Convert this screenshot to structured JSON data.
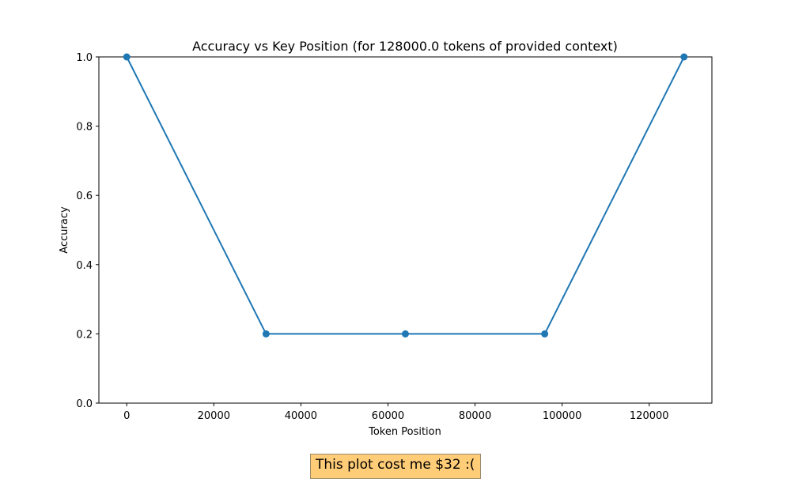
{
  "chart_data": {
    "type": "line",
    "title": "Accuracy vs Key Position (for 128000.0 tokens of provided context)",
    "xlabel": "Token Position",
    "ylabel": "Accuracy",
    "x": [
      0,
      32000,
      64000,
      96000,
      128000
    ],
    "series": [
      {
        "values": [
          1.0,
          0.2,
          0.2,
          0.2,
          1.0
        ],
        "color": "#1f77b4"
      }
    ],
    "xlim": [
      -6400,
      134400
    ],
    "ylim": [
      0,
      1
    ],
    "xticks": [
      0,
      20000,
      40000,
      60000,
      80000,
      100000,
      120000
    ],
    "xtick_labels": [
      "0",
      "20000",
      "40000",
      "60000",
      "80000",
      "100000",
      "120000"
    ],
    "yticks": [
      0,
      0.2,
      0.4,
      0.6,
      0.8,
      1.0
    ],
    "ytick_labels": [
      "0.0",
      "0.2",
      "0.4",
      "0.6",
      "0.8",
      "1.0"
    ],
    "grid": false,
    "markers": true
  },
  "annotation": {
    "text": "This plot cost me $32 :(",
    "background": "#ffcc77"
  }
}
